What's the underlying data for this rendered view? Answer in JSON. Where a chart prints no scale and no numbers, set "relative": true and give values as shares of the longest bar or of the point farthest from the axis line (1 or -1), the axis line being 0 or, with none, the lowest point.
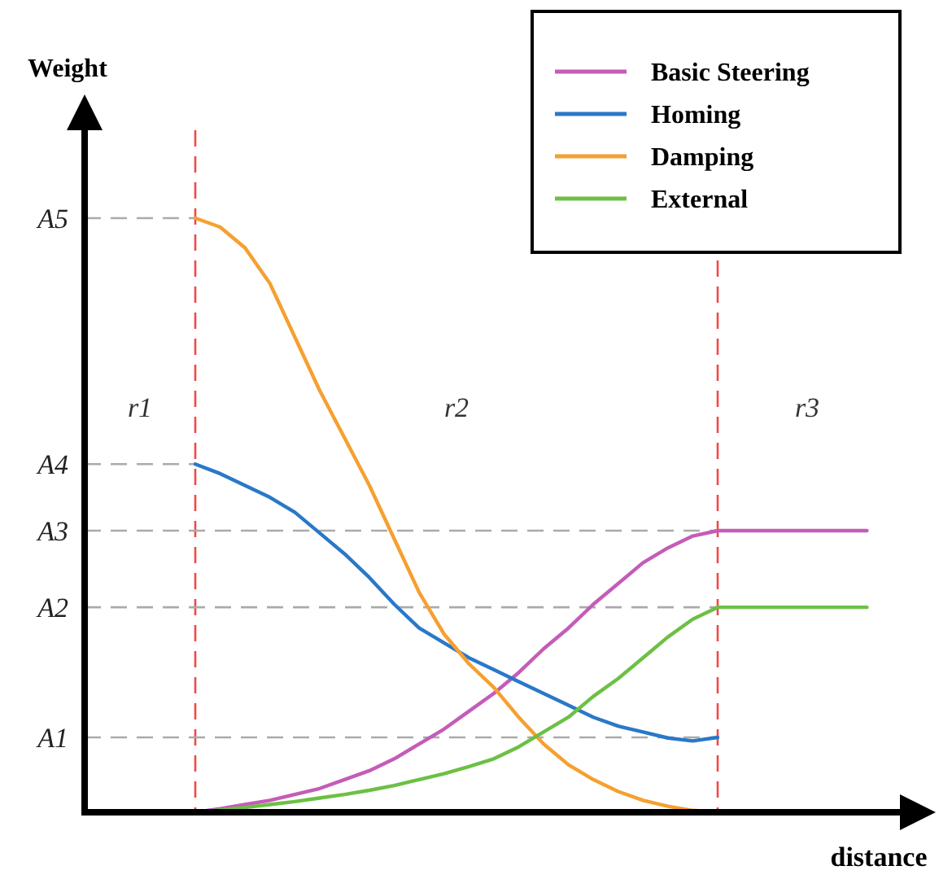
{
  "chart_data": {
    "type": "line",
    "relative": true,
    "xlabel": "distance",
    "legend": "top right",
    "categories": [
      null,
      null,
      null,
      null,
      null,
      null,
      null,
      null,
      null,
      null,
      null,
      null,
      null,
      null,
      null,
      null,
      null,
      null,
      null,
      null,
      null,
      null,
      null,
      null,
      null,
      null,
      null,
      null
    ],
    "series": [
      {
        "name": "Basic Steering",
        "color": "#c45cb8",
        "values": [
          0,
          0.006,
          0.013,
          0.02,
          0.03,
          0.04,
          0.055,
          0.07,
          0.09,
          0.115,
          0.14,
          0.17,
          0.2,
          0.235,
          0.275,
          0.31,
          0.35,
          0.385,
          0.42,
          0.445,
          0.465,
          0.474,
          0.474,
          0.474,
          0.474,
          0.474,
          0.474,
          0.474
        ]
      },
      {
        "name": "Homing",
        "color": "#2a78c8",
        "values": [
          0.586,
          0.57,
          0.55,
          0.53,
          0.505,
          0.47,
          0.435,
          0.395,
          0.35,
          0.31,
          0.285,
          0.26,
          0.24,
          0.22,
          0.2,
          0.18,
          0.16,
          0.145,
          0.135,
          0.125,
          0.12,
          0.126,
          null,
          null,
          null,
          null,
          null,
          null
        ]
      },
      {
        "name": "Damping",
        "color": "#f5a030",
        "values": [
          1,
          0.985,
          0.95,
          0.89,
          0.8,
          0.71,
          0.63,
          0.55,
          0.46,
          0.37,
          0.3,
          0.25,
          0.21,
          0.16,
          0.115,
          0.08,
          0.055,
          0.035,
          0.02,
          0.01,
          0.003,
          0,
          null,
          null,
          null,
          null,
          null,
          null
        ]
      },
      {
        "name": "External",
        "color": "#6cc045",
        "values": [
          0,
          0.004,
          0.008,
          0.013,
          0.018,
          0.024,
          0.03,
          0.037,
          0.045,
          0.055,
          0.065,
          0.077,
          0.09,
          0.11,
          0.135,
          0.16,
          0.195,
          0.225,
          0.26,
          0.295,
          0.325,
          0.345,
          0.345,
          0.345,
          0.345,
          0.345,
          0.345,
          0.345
        ]
      }
    ],
    "ref_lines": [
      {
        "axis": "y",
        "value": 1,
        "label": "A5",
        "color": "#aaaaaa",
        "line_style": "dashed"
      },
      {
        "axis": "y",
        "value": 0.586,
        "label": "A4",
        "color": "#aaaaaa",
        "line_style": "dashed"
      },
      {
        "axis": "y",
        "value": 0.474,
        "label": "A3",
        "color": "#aaaaaa",
        "line_style": "dashed"
      },
      {
        "axis": "y",
        "value": 0.345,
        "label": "A2",
        "color": "#aaaaaa",
        "line_style": "dashed"
      },
      {
        "axis": "y",
        "value": 0.126,
        "label": "A1",
        "color": "#aaaaaa",
        "line_style": "dashed"
      }
    ],
    "annotations": [
      "Weight",
      "r1",
      "r2",
      "r3"
    ]
  }
}
